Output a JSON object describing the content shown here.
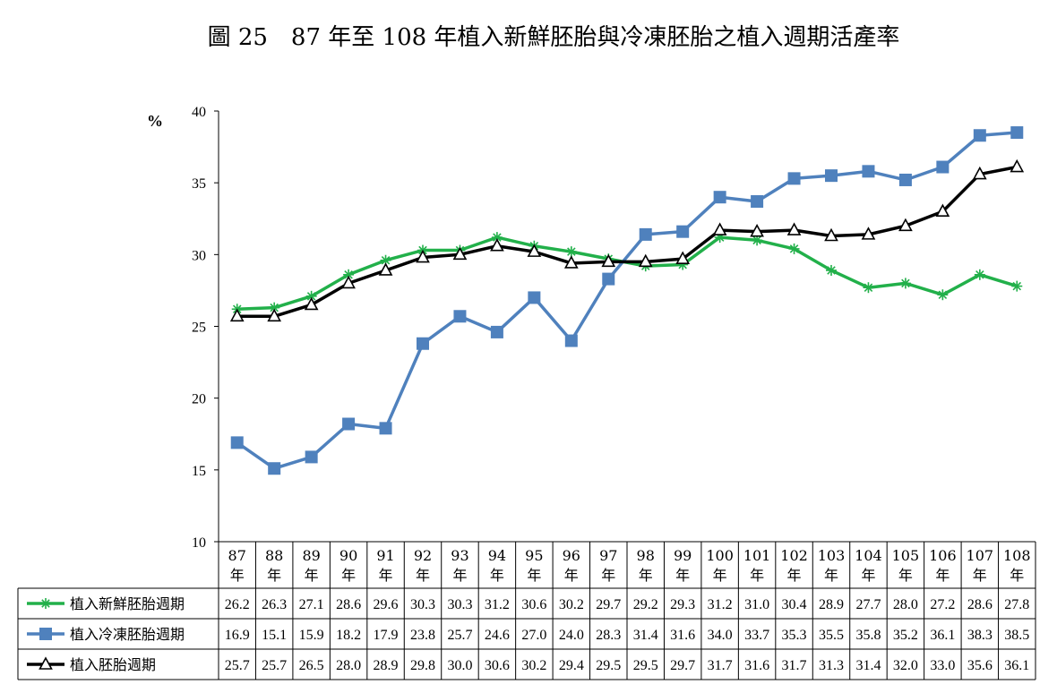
{
  "chart_data": {
    "type": "line",
    "title": "圖 25　87 年至 108 年植入新鮮胚胎與冷凍胚胎之植入週期活產率",
    "ylabel": "%",
    "ylim": [
      10,
      40
    ],
    "yticks": [
      10,
      15,
      20,
      25,
      30,
      35,
      40
    ],
    "grid": false,
    "legend": "data-table-left",
    "categories": [
      [
        "87",
        "年"
      ],
      [
        "88",
        "年"
      ],
      [
        "89",
        "年"
      ],
      [
        "90",
        "年"
      ],
      [
        "91",
        "年"
      ],
      [
        "92",
        "年"
      ],
      [
        "93",
        "年"
      ],
      [
        "94",
        "年"
      ],
      [
        "95",
        "年"
      ],
      [
        "96",
        "年"
      ],
      [
        "97",
        "年"
      ],
      [
        "98",
        "年"
      ],
      [
        "99",
        "年"
      ],
      [
        "100",
        "年"
      ],
      [
        "101",
        "年"
      ],
      [
        "102",
        "年"
      ],
      [
        "103",
        "年"
      ],
      [
        "104",
        "年"
      ],
      [
        "105",
        "年"
      ],
      [
        "106",
        "年"
      ],
      [
        "107",
        "年"
      ],
      [
        "108",
        "年"
      ]
    ],
    "series": [
      {
        "name": "植入新鮮胚胎週期",
        "color": "#22b04a",
        "marker": "asterisk",
        "values": [
          26.2,
          26.3,
          27.1,
          28.6,
          29.6,
          30.3,
          30.3,
          31.2,
          30.6,
          30.2,
          29.7,
          29.2,
          29.3,
          31.2,
          31.0,
          30.4,
          28.9,
          27.7,
          28.0,
          27.2,
          28.6,
          27.8
        ],
        "labels": [
          "26.2",
          "26.3",
          "27.1",
          "28.6",
          "29.6",
          "30.3",
          "30.3",
          "31.2",
          "30.6",
          "30.2",
          "29.7",
          "29.2",
          "29.3",
          "31.2",
          "31.0",
          "30.4",
          "28.9",
          "27.7",
          "28.0",
          "27.2",
          "28.6",
          "27.8"
        ]
      },
      {
        "name": "植入冷凍胚胎週期",
        "color": "#4f81bd",
        "marker": "square",
        "values": [
          16.9,
          15.1,
          15.9,
          18.2,
          17.9,
          23.8,
          25.7,
          24.6,
          27.0,
          24.0,
          28.3,
          31.4,
          31.6,
          34.0,
          33.7,
          35.3,
          35.5,
          35.8,
          35.2,
          36.1,
          38.3,
          38.5
        ],
        "labels": [
          "16.9",
          "15.1",
          "15.9",
          "18.2",
          "17.9",
          "23.8",
          "25.7",
          "24.6",
          "27.0",
          "24.0",
          "28.3",
          "31.4",
          "31.6",
          "34.0",
          "33.7",
          "35.3",
          "35.5",
          "35.8",
          "35.2",
          "36.1",
          "38.3",
          "38.5"
        ]
      },
      {
        "name": "植入胚胎週期",
        "color": "#000000",
        "marker": "triangle",
        "values": [
          25.7,
          25.7,
          26.5,
          28.0,
          28.9,
          29.8,
          30.0,
          30.6,
          30.2,
          29.4,
          29.5,
          29.5,
          29.7,
          31.7,
          31.6,
          31.7,
          31.3,
          31.4,
          32.0,
          33.0,
          35.6,
          36.1
        ],
        "labels": [
          "25.7",
          "25.7",
          "26.5",
          "28.0",
          "28.9",
          "29.8",
          "30.0",
          "30.6",
          "30.2",
          "29.4",
          "29.5",
          "29.5",
          "29.7",
          "31.7",
          "31.6",
          "31.7",
          "31.3",
          "31.4",
          "32.0",
          "33.0",
          "35.6",
          "36.1"
        ]
      }
    ]
  }
}
